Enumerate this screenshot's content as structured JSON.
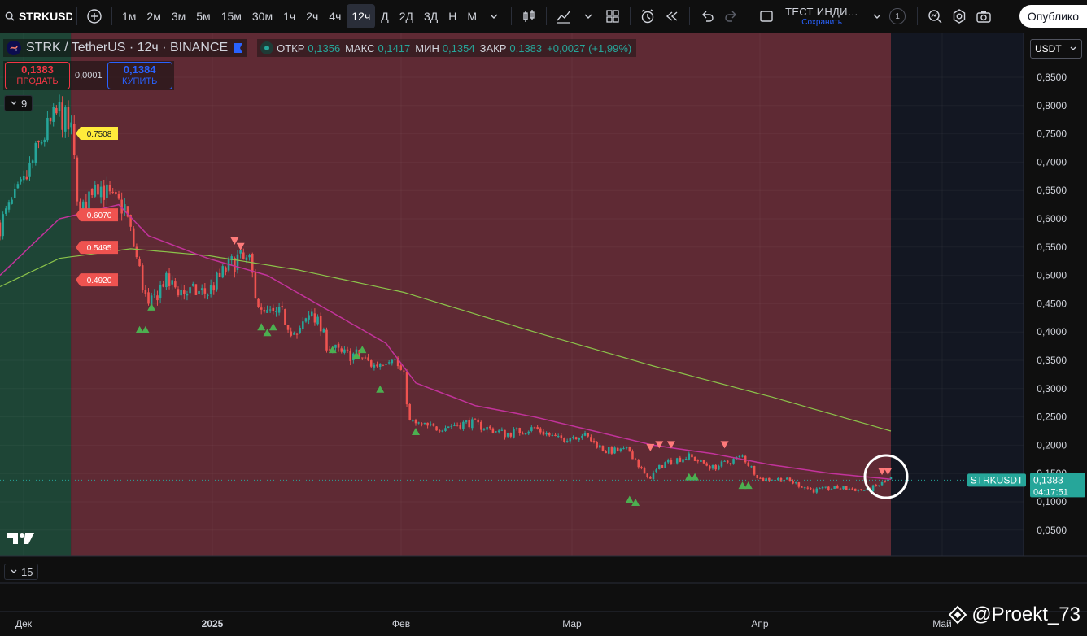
{
  "toolbar": {
    "symbol": "STRKUSDT",
    "intervals": [
      "1м",
      "2м",
      "3м",
      "5м",
      "15м",
      "30м",
      "1ч",
      "2ч",
      "4ч",
      "12ч",
      "Д",
      "2Д",
      "3Д",
      "Н",
      "М"
    ],
    "active_interval": "12ч",
    "layout_name": "ТЕСТ ИНДИ…",
    "layout_save": "Сохранить",
    "layout_count": "1",
    "publish": "Опублико"
  },
  "legend": {
    "title": "STRK / TetherUS · 12ч · BINANCE",
    "open_label": "ОТКР",
    "open": "0,1356",
    "high_label": "МАКС",
    "high": "0,1417",
    "low_label": "МИН",
    "low": "0,1354",
    "close_label": "ЗАКР",
    "close": "0,1383",
    "change": "+0,0027 (+1,99%)"
  },
  "trade": {
    "sell_price": "0,1383",
    "sell_label": "ПРОДАТЬ",
    "buy_price": "0,1384",
    "buy_label": "КУПИТЬ",
    "spread": "0,0001"
  },
  "indicator_chips": {
    "top": "9",
    "bottom": "15"
  },
  "currency": "USDT",
  "last_price": {
    "symbol": "STRKUSDT",
    "price": "0,1383",
    "countdown": "04:17:51"
  },
  "watermark": "@Proekt_73",
  "colors": {
    "bull": "#26a69a",
    "bear": "#ef5350",
    "ma_fast": "#c2339b",
    "ma_slow": "#8bc34a",
    "zone_green": "#1e4536",
    "zone_red": "#5f2a34",
    "label_yellow": "#ffeb3b",
    "label_red": "#ef5350"
  },
  "chart_data": {
    "type": "candlestick",
    "title": "STRK / TetherUS · 12ч · BINANCE",
    "y_ticks": [
      "0,8500",
      "0,8000",
      "0,7500",
      "0,7000",
      "0,6500",
      "0,6000",
      "0,5500",
      "0,5000",
      "0,4500",
      "0,4000",
      "0,3500",
      "0,3000",
      "0,2500",
      "0,2000",
      "0,1500",
      "0,1000",
      "0,0500"
    ],
    "x_ticks": [
      "Дек",
      "2025",
      "Фев",
      "Мар",
      "Апр",
      "Май"
    ],
    "ylim": [
      0.03,
      0.88
    ],
    "close_path": [
      {
        "i": 0,
        "y": 0.59
      },
      {
        "i": 8,
        "y": 0.66
      },
      {
        "i": 14,
        "y": 0.74
      },
      {
        "i": 20,
        "y": 0.79
      },
      {
        "i": 24,
        "y": 0.75
      },
      {
        "i": 27,
        "y": 0.6
      },
      {
        "i": 32,
        "y": 0.67
      },
      {
        "i": 38,
        "y": 0.63
      },
      {
        "i": 42,
        "y": 0.62
      },
      {
        "i": 46,
        "y": 0.53
      },
      {
        "i": 50,
        "y": 0.44
      },
      {
        "i": 55,
        "y": 0.49
      },
      {
        "i": 62,
        "y": 0.47
      },
      {
        "i": 70,
        "y": 0.47
      },
      {
        "i": 76,
        "y": 0.51
      },
      {
        "i": 80,
        "y": 0.53
      },
      {
        "i": 84,
        "y": 0.52
      },
      {
        "i": 88,
        "y": 0.43
      },
      {
        "i": 95,
        "y": 0.43
      },
      {
        "i": 100,
        "y": 0.39
      },
      {
        "i": 105,
        "y": 0.44
      },
      {
        "i": 110,
        "y": 0.38
      },
      {
        "i": 115,
        "y": 0.36
      },
      {
        "i": 120,
        "y": 0.36
      },
      {
        "i": 126,
        "y": 0.34
      },
      {
        "i": 132,
        "y": 0.36
      },
      {
        "i": 136,
        "y": 0.32
      },
      {
        "i": 138,
        "y": 0.24
      },
      {
        "i": 146,
        "y": 0.23
      },
      {
        "i": 158,
        "y": 0.24
      },
      {
        "i": 170,
        "y": 0.22
      },
      {
        "i": 180,
        "y": 0.23
      },
      {
        "i": 188,
        "y": 0.21
      },
      {
        "i": 196,
        "y": 0.22
      },
      {
        "i": 204,
        "y": 0.19
      },
      {
        "i": 212,
        "y": 0.19
      },
      {
        "i": 218,
        "y": 0.14
      },
      {
        "i": 224,
        "y": 0.17
      },
      {
        "i": 232,
        "y": 0.18
      },
      {
        "i": 240,
        "y": 0.16
      },
      {
        "i": 250,
        "y": 0.18
      },
      {
        "i": 256,
        "y": 0.14
      },
      {
        "i": 264,
        "y": 0.14
      },
      {
        "i": 274,
        "y": 0.12
      },
      {
        "i": 282,
        "y": 0.125
      },
      {
        "i": 292,
        "y": 0.12
      },
      {
        "i": 300,
        "y": 0.14
      }
    ],
    "ma_fast": [
      {
        "i": 0,
        "y": 0.5
      },
      {
        "i": 20,
        "y": 0.6
      },
      {
        "i": 40,
        "y": 0.625
      },
      {
        "i": 50,
        "y": 0.57
      },
      {
        "i": 70,
        "y": 0.53
      },
      {
        "i": 90,
        "y": 0.5
      },
      {
        "i": 110,
        "y": 0.44
      },
      {
        "i": 130,
        "y": 0.38
      },
      {
        "i": 140,
        "y": 0.31
      },
      {
        "i": 160,
        "y": 0.27
      },
      {
        "i": 180,
        "y": 0.25
      },
      {
        "i": 200,
        "y": 0.225
      },
      {
        "i": 220,
        "y": 0.2
      },
      {
        "i": 240,
        "y": 0.185
      },
      {
        "i": 260,
        "y": 0.165
      },
      {
        "i": 280,
        "y": 0.15
      },
      {
        "i": 300,
        "y": 0.14
      }
    ],
    "ma_slow": [
      {
        "i": 0,
        "y": 0.48
      },
      {
        "i": 20,
        "y": 0.53
      },
      {
        "i": 44,
        "y": 0.547
      },
      {
        "i": 70,
        "y": 0.535
      },
      {
        "i": 100,
        "y": 0.51
      },
      {
        "i": 136,
        "y": 0.47
      },
      {
        "i": 180,
        "y": 0.4
      },
      {
        "i": 220,
        "y": 0.34
      },
      {
        "i": 260,
        "y": 0.285
      },
      {
        "i": 300,
        "y": 0.225
      }
    ],
    "level_labels": [
      "0.7508",
      "0.6070",
      "0.5495",
      "0.4920"
    ],
    "level_values": [
      0.7508,
      0.607,
      0.5495,
      0.492
    ],
    "buy_signals": [
      {
        "i": 47,
        "y": 0.405
      },
      {
        "i": 49,
        "y": 0.405
      },
      {
        "i": 51,
        "y": 0.445
      },
      {
        "i": 88,
        "y": 0.41
      },
      {
        "i": 90,
        "y": 0.4
      },
      {
        "i": 92,
        "y": 0.41
      },
      {
        "i": 112,
        "y": 0.37
      },
      {
        "i": 120,
        "y": 0.36
      },
      {
        "i": 122,
        "y": 0.37
      },
      {
        "i": 128,
        "y": 0.3
      },
      {
        "i": 140,
        "y": 0.225
      },
      {
        "i": 212,
        "y": 0.105
      },
      {
        "i": 214,
        "y": 0.1
      },
      {
        "i": 232,
        "y": 0.145
      },
      {
        "i": 234,
        "y": 0.145
      },
      {
        "i": 250,
        "y": 0.13
      },
      {
        "i": 252,
        "y": 0.13
      }
    ],
    "sell_signals": [
      {
        "i": 79,
        "y": 0.56
      },
      {
        "i": 81,
        "y": 0.55
      },
      {
        "i": 219,
        "y": 0.195
      },
      {
        "i": 222,
        "y": 0.2
      },
      {
        "i": 226,
        "y": 0.2
      },
      {
        "i": 244,
        "y": 0.2
      },
      {
        "i": 297,
        "y": 0.153
      },
      {
        "i": 299,
        "y": 0.153
      }
    ],
    "candle_count": 301,
    "last_price": 0.1383,
    "zone_split_index": 24
  }
}
